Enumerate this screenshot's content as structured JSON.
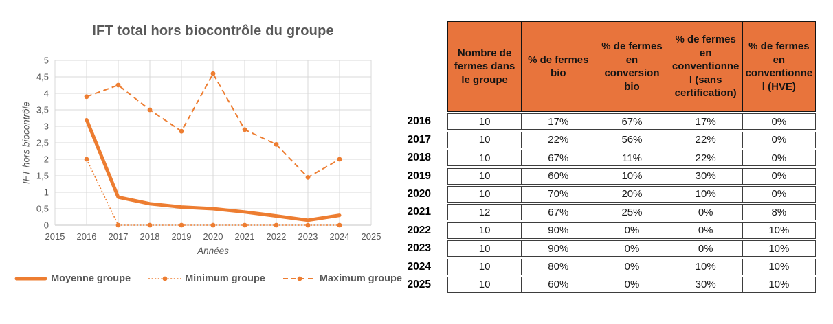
{
  "chart_data": {
    "type": "line",
    "title": "IFT total hors biocontrôle du groupe",
    "xlabel": "Années",
    "ylabel": "IFT hors biocontrôle",
    "x": [
      "2015",
      "2016",
      "2017",
      "2018",
      "2019",
      "2020",
      "2021",
      "2022",
      "2023",
      "2024",
      "2025"
    ],
    "ylim": [
      0,
      5
    ],
    "ytick_step": 0.5,
    "ytick_labels": [
      "0",
      "0,5",
      "1",
      "1,5",
      "2",
      "2,5",
      "3",
      "3,5",
      "4",
      "4,5",
      "5"
    ],
    "grid": true,
    "legend_position": "bottom",
    "color": "#ED7D31",
    "series": [
      {
        "name": "Moyenne groupe",
        "style": "solid",
        "width": 5,
        "markers": false,
        "values": [
          null,
          3.2,
          0.85,
          0.65,
          0.55,
          0.5,
          0.4,
          0.28,
          0.15,
          0.3,
          null
        ]
      },
      {
        "name": "Minimum groupe",
        "style": "dotted",
        "width": 1.6,
        "markers": true,
        "values": [
          null,
          2.0,
          0,
          0,
          0,
          0,
          0,
          0,
          0,
          0,
          null
        ]
      },
      {
        "name": "Maximum groupe",
        "style": "dashed",
        "width": 2,
        "markers": true,
        "values": [
          null,
          3.9,
          4.25,
          3.5,
          2.85,
          4.6,
          2.9,
          2.45,
          1.45,
          2.0,
          null
        ]
      }
    ]
  },
  "table": {
    "columns": [
      "Nombre de fermes dans le groupe",
      "% de fermes bio",
      "% de fermes en conversion bio",
      "% de fermes en conventionnel (sans certification)",
      "% de fermes en conventionnel (HVE)"
    ],
    "rows": [
      {
        "year": "2016",
        "values": [
          "10",
          "17%",
          "67%",
          "17%",
          "0%"
        ]
      },
      {
        "year": "2017",
        "values": [
          "10",
          "22%",
          "56%",
          "22%",
          "0%"
        ]
      },
      {
        "year": "2018",
        "values": [
          "10",
          "67%",
          "11%",
          "22%",
          "0%"
        ]
      },
      {
        "year": "2019",
        "values": [
          "10",
          "60%",
          "10%",
          "30%",
          "0%"
        ]
      },
      {
        "year": "2020",
        "values": [
          "10",
          "70%",
          "20%",
          "10%",
          "0%"
        ]
      },
      {
        "year": "2021",
        "values": [
          "12",
          "67%",
          "25%",
          "0%",
          "8%"
        ]
      },
      {
        "year": "2022",
        "values": [
          "10",
          "90%",
          "0%",
          "0%",
          "10%"
        ]
      },
      {
        "year": "2023",
        "values": [
          "10",
          "90%",
          "0%",
          "0%",
          "10%"
        ]
      },
      {
        "year": "2024",
        "values": [
          "10",
          "80%",
          "0%",
          "10%",
          "10%"
        ]
      },
      {
        "year": "2025",
        "values": [
          "10",
          "60%",
          "0%",
          "30%",
          "10%"
        ]
      }
    ]
  },
  "colors": {
    "accent": "#ED7D31",
    "table_header": "#E8743C",
    "gridline": "#D9D9D9",
    "axis_text": "#595959",
    "table_border": "#3d3d3d"
  }
}
